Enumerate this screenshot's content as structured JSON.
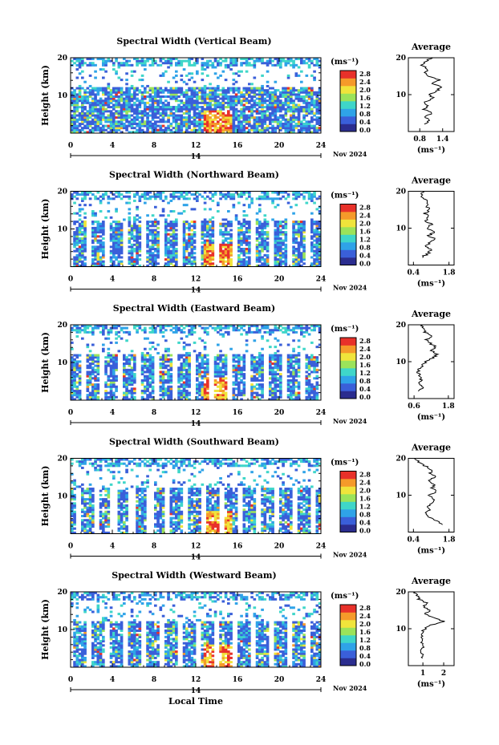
{
  "figure": {
    "xaxis_label": "Local Time",
    "panels_common": {
      "ylabel": "Height (km)",
      "yticks": [
        10,
        20
      ],
      "ylim": [
        0,
        20
      ],
      "xticks": [
        0,
        4,
        8,
        12,
        16,
        20,
        24
      ],
      "xlim": [
        0,
        24
      ],
      "day_label": "14",
      "date_label": "Nov 2024",
      "cbar_unit": "(ms⁻¹)",
      "cbar_ticks": [
        "2.8",
        "2.4",
        "2.0",
        "1.6",
        "1.2",
        "0.8",
        "0.4",
        "0.0"
      ],
      "avg_title": "Average",
      "avg_xlabel": "(ms⁻¹)"
    }
  },
  "chart_data": [
    {
      "type": "heatmap",
      "title": "Spectral Width (Vertical Beam)",
      "xlabel": "",
      "ylabel": "Height (km)",
      "colorscale": [
        "#2b2d8f",
        "#3a5fd9",
        "#2fa3e8",
        "#3fd6c9",
        "#9be35a",
        "#f0e43b",
        "#f59a2a",
        "#e8312a"
      ],
      "clim": [
        0,
        3.0
      ],
      "profile": {
        "title": "Average",
        "xticks": [
          "0.8",
          "1.4"
        ],
        "xlim": [
          0.5,
          1.7
        ],
        "heights": [
          2,
          3,
          4,
          5,
          6,
          7,
          8,
          9,
          10,
          11,
          12,
          13,
          14,
          15,
          16,
          17,
          18,
          19,
          20
        ],
        "values": [
          0.9,
          1.05,
          0.95,
          1.1,
          0.9,
          1.0,
          0.95,
          1.15,
          1.05,
          1.25,
          1.35,
          1.15,
          1.3,
          1.05,
          0.95,
          1.0,
          0.85,
          0.95,
          1.1
        ]
      }
    },
    {
      "type": "heatmap",
      "title": "Spectral Width (Northward Beam)",
      "xlabel": "",
      "ylabel": "Height (km)",
      "colorscale": [
        "#2b2d8f",
        "#3a5fd9",
        "#2fa3e8",
        "#3fd6c9",
        "#9be35a",
        "#f0e43b",
        "#f59a2a",
        "#e8312a"
      ],
      "clim": [
        0,
        3.0
      ],
      "profile": {
        "title": "Average",
        "xticks": [
          "0.4",
          "1.8"
        ],
        "xlim": [
          0.2,
          2.0
        ],
        "heights": [
          2,
          3,
          4,
          5,
          6,
          7,
          8,
          9,
          10,
          11,
          12,
          13,
          14,
          15,
          16,
          17,
          18,
          19,
          20
        ],
        "values": [
          0.7,
          0.95,
          1.1,
          0.85,
          1.05,
          1.25,
          1.0,
          1.2,
          0.95,
          1.1,
          0.9,
          1.0,
          0.85,
          1.05,
          0.9,
          1.0,
          0.8,
          0.7,
          0.75
        ]
      }
    },
    {
      "type": "heatmap",
      "title": "Spectral Width (Eastward Beam)",
      "xlabel": "",
      "ylabel": "Height (km)",
      "colorscale": [
        "#2b2d8f",
        "#3a5fd9",
        "#2fa3e8",
        "#3fd6c9",
        "#9be35a",
        "#f0e43b",
        "#f59a2a",
        "#e8312a"
      ],
      "clim": [
        0,
        3.0
      ],
      "profile": {
        "title": "Average",
        "xticks": [
          "0.6",
          "1.8"
        ],
        "xlim": [
          0.4,
          2.0
        ],
        "heights": [
          2,
          3,
          4,
          5,
          6,
          7,
          8,
          9,
          10,
          11,
          12,
          13,
          14,
          15,
          16,
          17,
          18,
          19,
          20
        ],
        "values": [
          0.8,
          0.9,
          0.75,
          0.85,
          0.8,
          0.75,
          0.8,
          0.9,
          1.0,
          1.25,
          1.4,
          1.2,
          1.35,
          1.15,
          1.05,
          1.2,
          1.0,
          0.9,
          0.85
        ]
      }
    },
    {
      "type": "heatmap",
      "title": "Spectral Width (Southward Beam)",
      "xlabel": "",
      "ylabel": "Height (km)",
      "colorscale": [
        "#2b2d8f",
        "#3a5fd9",
        "#2fa3e8",
        "#3fd6c9",
        "#9be35a",
        "#f0e43b",
        "#f59a2a",
        "#e8312a"
      ],
      "clim": [
        0,
        3.0
      ],
      "profile": {
        "title": "Average",
        "xticks": [
          "0.4",
          "1.8"
        ],
        "xlim": [
          0.2,
          2.0
        ],
        "heights": [
          2,
          3,
          4,
          5,
          6,
          7,
          8,
          9,
          10,
          11,
          12,
          13,
          14,
          15,
          16,
          17,
          18,
          19,
          20
        ],
        "values": [
          1.6,
          1.3,
          1.0,
          0.85,
          1.05,
          0.95,
          1.1,
          1.2,
          1.05,
          1.3,
          1.15,
          1.2,
          1.0,
          1.25,
          1.05,
          1.1,
          0.85,
          0.6,
          0.5
        ]
      }
    },
    {
      "type": "heatmap",
      "title": "Spectral Width (Westward Beam)",
      "xlabel": "Local Time",
      "ylabel": "Height (km)",
      "colorscale": [
        "#2b2d8f",
        "#3a5fd9",
        "#2fa3e8",
        "#3fd6c9",
        "#9be35a",
        "#f0e43b",
        "#f59a2a",
        "#e8312a"
      ],
      "clim": [
        0,
        3.0
      ],
      "profile": {
        "title": "Average",
        "xticks": [
          "1",
          "2"
        ],
        "xlim": [
          0.3,
          2.5
        ],
        "heights": [
          2,
          3,
          4,
          5,
          6,
          7,
          8,
          9,
          10,
          11,
          12,
          13,
          14,
          15,
          16,
          17,
          18,
          19,
          20
        ],
        "values": [
          0.9,
          1.0,
          0.85,
          1.05,
          0.95,
          0.9,
          1.0,
          0.95,
          1.1,
          1.4,
          2.0,
          1.5,
          1.1,
          1.3,
          1.05,
          1.2,
          0.8,
          0.7,
          0.6
        ]
      }
    }
  ]
}
